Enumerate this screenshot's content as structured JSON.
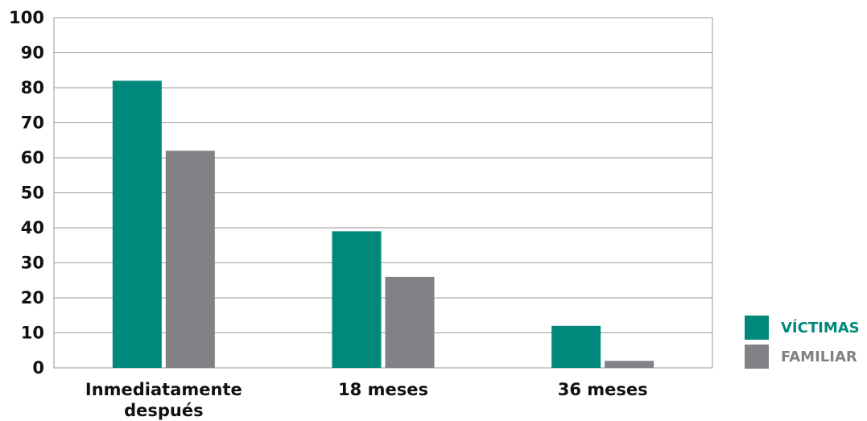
{
  "chart_data": {
    "type": "bar",
    "categories": [
      [
        "Inmediatamente",
        "después"
      ],
      [
        "18 meses"
      ],
      [
        "36 meses"
      ]
    ],
    "series": [
      {
        "name": "VÍCTIMAS",
        "color": "#00897B",
        "values": [
          82,
          39,
          12
        ]
      },
      {
        "name": "FAMILIAR",
        "color": "#808285",
        "values": [
          62,
          26,
          2
        ]
      }
    ],
    "ylim": [
      0,
      100
    ],
    "yticks": [
      0,
      10,
      20,
      30,
      40,
      50,
      60,
      70,
      80,
      90,
      100
    ],
    "grid": true,
    "legend_position": "bottom-right"
  }
}
